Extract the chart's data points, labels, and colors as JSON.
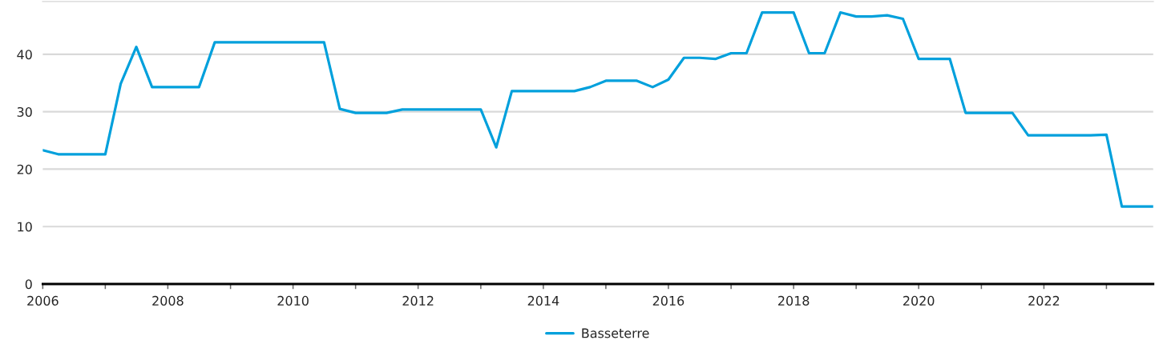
{
  "chart_data": {
    "type": "line",
    "x": [
      "2006-01",
      "2006-04",
      "2006-07",
      "2006-10",
      "2007-01",
      "2007-04",
      "2007-07",
      "2007-10",
      "2008-01",
      "2008-04",
      "2008-07",
      "2008-10",
      "2009-01",
      "2009-04",
      "2009-07",
      "2009-10",
      "2010-01",
      "2010-04",
      "2010-07",
      "2010-10",
      "2011-01",
      "2011-04",
      "2011-07",
      "2011-10",
      "2012-01",
      "2012-04",
      "2012-07",
      "2012-10",
      "2013-01",
      "2013-04",
      "2013-07",
      "2013-10",
      "2014-01",
      "2014-04",
      "2014-07",
      "2014-10",
      "2015-01",
      "2015-04",
      "2015-07",
      "2015-10",
      "2016-01",
      "2016-04",
      "2016-07",
      "2016-10",
      "2017-01",
      "2017-04",
      "2017-07",
      "2017-10",
      "2018-01",
      "2018-04",
      "2018-07",
      "2018-10",
      "2019-01",
      "2019-04",
      "2019-07",
      "2019-10",
      "2020-01",
      "2020-04",
      "2020-07",
      "2020-10",
      "2021-01",
      "2021-04",
      "2021-07",
      "2021-10",
      "2022-01",
      "2022-04",
      "2022-07",
      "2022-10",
      "2023-01",
      "2023-04",
      "2023-07",
      "2023-10"
    ],
    "series": [
      {
        "name": "Basseterre",
        "color": "#00a0dc",
        "values": [
          23.3,
          22.6,
          22.6,
          22.6,
          22.6,
          34.9,
          41.3,
          34.3,
          34.3,
          34.3,
          34.3,
          42.1,
          42.1,
          42.1,
          42.1,
          42.1,
          42.1,
          42.1,
          42.1,
          30.5,
          29.8,
          29.8,
          29.8,
          30.4,
          30.4,
          30.4,
          30.4,
          30.4,
          30.4,
          23.8,
          33.6,
          33.6,
          33.6,
          33.6,
          33.6,
          34.3,
          35.4,
          35.4,
          35.4,
          34.3,
          35.6,
          39.4,
          39.4,
          39.2,
          40.2,
          40.2,
          47.3,
          47.3,
          47.3,
          40.2,
          40.2,
          47.3,
          46.6,
          46.6,
          46.8,
          46.2,
          39.2,
          39.2,
          39.2,
          29.8,
          29.8,
          29.8,
          29.8,
          25.9,
          25.9,
          25.9,
          25.9,
          25.9,
          26.0,
          13.5,
          13.5,
          13.5
        ]
      }
    ],
    "xlim": [
      "2006-01",
      "2023-10"
    ],
    "xticks": [
      "2006",
      {
        "value": "2007",
        "label": null
      },
      "2008",
      {
        "value": "2009",
        "label": null
      },
      "2010",
      {
        "value": "2011",
        "label": null
      },
      "2012",
      {
        "value": "2013",
        "label": null
      },
      "2014",
      {
        "value": "2015",
        "label": null
      },
      "2016",
      {
        "value": "2017",
        "label": null
      },
      "2018",
      {
        "value": "2019",
        "label": null
      },
      "2020",
      {
        "value": "2021",
        "label": null
      },
      "2022",
      {
        "value": "2023",
        "label": null
      }
    ],
    "ylim": [
      0,
      49.2
    ],
    "yticks": [
      0,
      10,
      20,
      30,
      40
    ],
    "grid": "y",
    "legend": "bottom",
    "line_style": "solid"
  }
}
